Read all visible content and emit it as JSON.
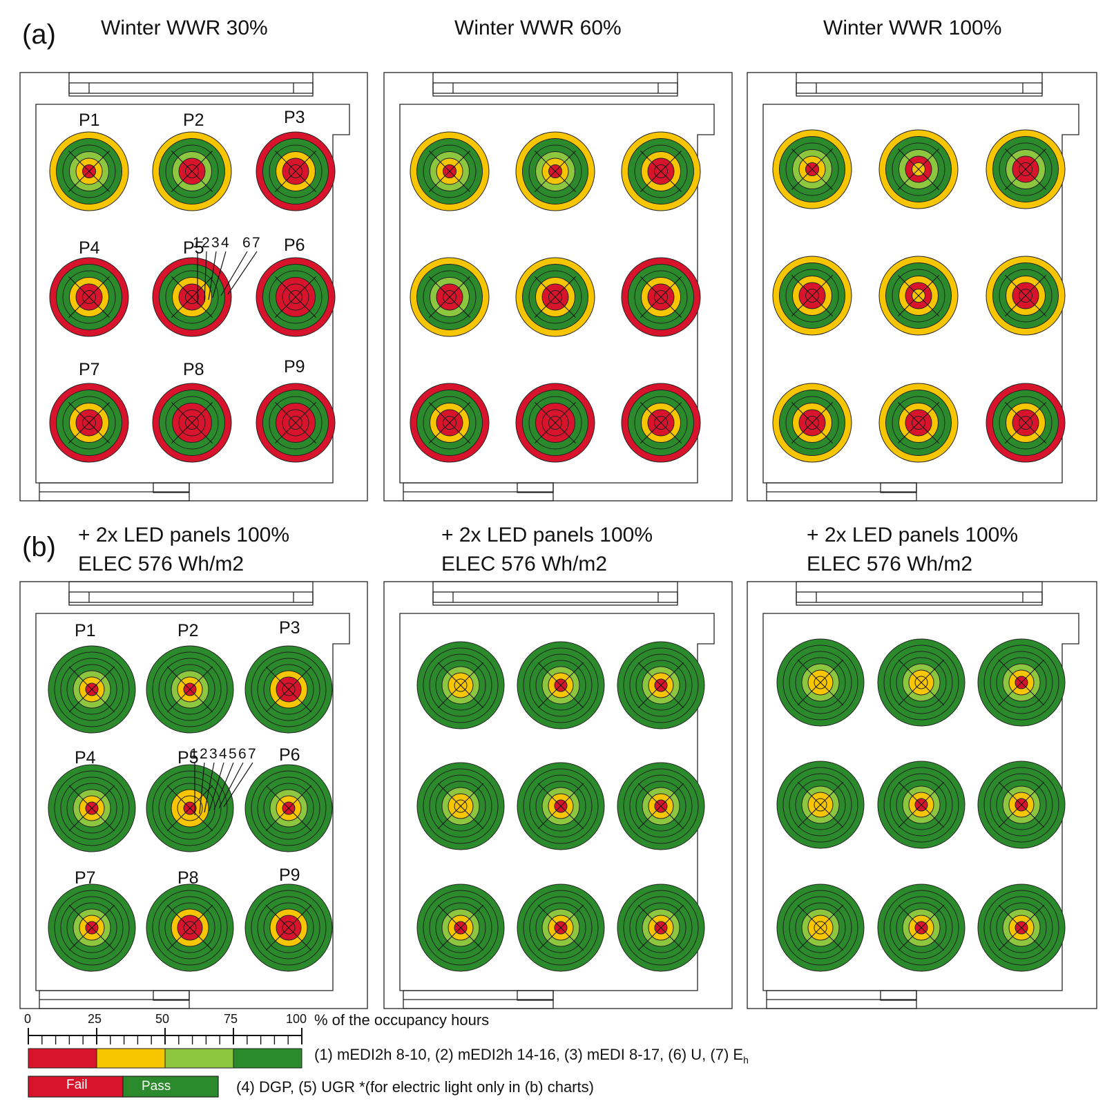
{
  "section_a": {
    "label": "(a)",
    "titles": [
      "Winter WWR 30%",
      "Winter WWR 60%",
      "Winter WWR 100%"
    ]
  },
  "section_b": {
    "label": "(b)",
    "titles": [
      {
        "line1": "+ 2x LED panels 100%",
        "line2": "ELEC 576 Wh/m2"
      },
      {
        "line1": "+ 2x LED panels 100%",
        "line2": "ELEC 576 Wh/m2"
      },
      {
        "line1": "+ 2x LED panels 100%",
        "line2": "ELEC 576 Wh/m2"
      }
    ]
  },
  "points": [
    "P1",
    "P2",
    "P3",
    "P4",
    "P5",
    "P6",
    "P7",
    "P8",
    "P9"
  ],
  "metric_keys_a": [
    "1",
    "2",
    "3",
    "4",
    "6",
    "7"
  ],
  "metric_keys_b": [
    "1",
    "2",
    "3",
    "4",
    "5",
    "6",
    "7"
  ],
  "colors": {
    "fail": "#d7142b",
    "low": "#f7c600",
    "mid": "#8dc63f",
    "high": "#2b8a2b",
    "outline": "#222222"
  },
  "legend": {
    "scale_ticks": [
      "0",
      "25",
      "50",
      "75",
      "100"
    ],
    "scale_caption": "% of the occupancy hours",
    "line1_text": "(1) mEDI2h 8-10, (2) mEDI2h 14-16, (3) mEDI 8-17, (6) U, (7) E",
    "line1_subscript": "h",
    "fail_label": "Fail",
    "pass_label": "Pass",
    "line2_text": "(4) DGP, (5) UGR *(for electric light only in (b) charts)"
  }
}
